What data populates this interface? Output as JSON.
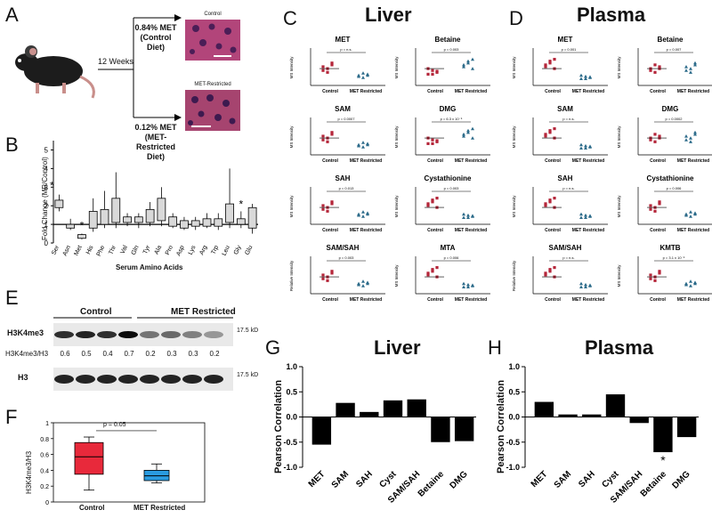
{
  "panels": {
    "A": {
      "label": "A",
      "timeline": "12 Weeks",
      "control_diet": [
        "0.84% MET",
        "(Control Diet)"
      ],
      "restricted_diet": [
        "0.12% MET",
        "(MET-Restricted",
        "Diet)"
      ],
      "img_control_label": "Control",
      "img_restricted_label": "MET-Restricted"
    },
    "B": {
      "label": "B",
      "ylabel": "Fold Change (MR/Control)",
      "xlabel": "Serum Amino Acids",
      "yticks": [
        "0",
        "1",
        "2",
        "3",
        "4",
        "5"
      ],
      "categories": [
        "Ser",
        "Asn",
        "Met",
        "His",
        "Phe",
        "Thr",
        "Val",
        "Gln",
        "Tyr",
        "Ala",
        "Pro",
        "Asp",
        "Lys",
        "Arg",
        "Trp",
        "Leu",
        "Gly",
        "Glu"
      ],
      "stars": [
        "*",
        "*",
        "*"
      ]
    },
    "C": {
      "label": "C",
      "title": "Liver"
    },
    "D": {
      "label": "D",
      "title": "Plasma"
    },
    "E": {
      "label": "E",
      "group_control": "Control",
      "group_restricted": "MET Restricted",
      "row1": "H3K4me3",
      "row_ratio": "H3K4me3/H3",
      "row2": "H3",
      "kd": "17.5 kD",
      "ratios": [
        "0.6",
        "0.5",
        "0.4",
        "0.7",
        "0.2",
        "0.3",
        "0.3",
        "0.2"
      ]
    },
    "F": {
      "label": "F",
      "ylabel": "H3K4me3/H3",
      "pval": "p = 0.05",
      "yticks": [
        "0",
        "0.2",
        "0.4",
        "0.6",
        "0.8",
        "1"
      ],
      "categories": [
        "Control",
        "MET Restricted"
      ],
      "colors": {
        "control": "#e8293b",
        "restricted": "#2a9be0"
      }
    },
    "G": {
      "label": "G",
      "title": "Liver",
      "ylabel": "Pearson Correlation"
    },
    "H": {
      "label": "H",
      "title": "Plasma",
      "ylabel": "Pearson Correlation"
    }
  },
  "scatter_plots": {
    "liver": [
      {
        "title": "MET",
        "ylabel": "MS Intensity",
        "p": "p = n.s."
      },
      {
        "title": "Betaine",
        "ylabel": "MS Intensity",
        "p": "p = 0.003"
      },
      {
        "title": "SAM",
        "ylabel": "MS Intensity",
        "p": "p = 0.0007"
      },
      {
        "title": "DMG",
        "ylabel": "MS Intensity",
        "p": "p = 6.3 x 10⁻⁵"
      },
      {
        "title": "SAH",
        "ylabel": "MS Intensity",
        "p": "p = 0.013"
      },
      {
        "title": "Cystathionine",
        "ylabel": "MS Intensity",
        "p": "p = 0.003"
      },
      {
        "title": "SAM/SAH",
        "ylabel": "Relative Intensity",
        "p": "p = 0.003"
      },
      {
        "title": "MTA",
        "ylabel": "MS Intensity",
        "p": "p = 0.006"
      }
    ],
    "plasma": [
      {
        "title": "MET",
        "ylabel": "MS Intensity",
        "p": "p = 0.001"
      },
      {
        "title": "Betaine",
        "ylabel": "MS Intensity",
        "p": "p = 0.007"
      },
      {
        "title": "SAM",
        "ylabel": "MS Intensity",
        "p": "p = n.s."
      },
      {
        "title": "DMG",
        "ylabel": "MS Intensity",
        "p": "p = 0.0002"
      },
      {
        "title": "SAH",
        "ylabel": "MS Intensity",
        "p": "p = n.s."
      },
      {
        "title": "Cystathionine",
        "ylabel": "MS Intensity",
        "p": "p = 0.006"
      },
      {
        "title": "SAM/SAH",
        "ylabel": "Relative Intensity",
        "p": "p = n.s."
      },
      {
        "title": "KMTB",
        "ylabel": "MS Intensity",
        "p": "p = 3.1 x 10⁻⁵"
      }
    ],
    "xlabels": [
      "Control",
      "MET Restricted"
    ]
  },
  "chart_data": [
    {
      "type": "bar",
      "title": "Liver",
      "ylabel": "Pearson Correlation",
      "categories": [
        "MET",
        "SAM",
        "SAH",
        "Cyst",
        "SAM/SAH",
        "Betaine",
        "DMG"
      ],
      "values": [
        -0.55,
        0.28,
        0.1,
        0.33,
        0.35,
        -0.5,
        -0.48
      ],
      "ylim": [
        -1.0,
        1.0
      ],
      "yticks": [
        "-1.0",
        "-0.5",
        "0.0",
        "0.5",
        "1.0"
      ]
    },
    {
      "type": "bar",
      "title": "Plasma",
      "ylabel": "Pearson Correlation",
      "categories": [
        "MET",
        "SAM",
        "SAH",
        "Cyst",
        "SAM/SAH",
        "Betaine",
        "DMG"
      ],
      "values": [
        0.3,
        0.05,
        0.05,
        0.45,
        -0.12,
        -0.7,
        -0.4
      ],
      "ylim": [
        -1.0,
        1.0
      ],
      "yticks": [
        "-1.0",
        "-0.5",
        "0.0",
        "0.5",
        "1.0"
      ],
      "annotation": "*"
    }
  ]
}
